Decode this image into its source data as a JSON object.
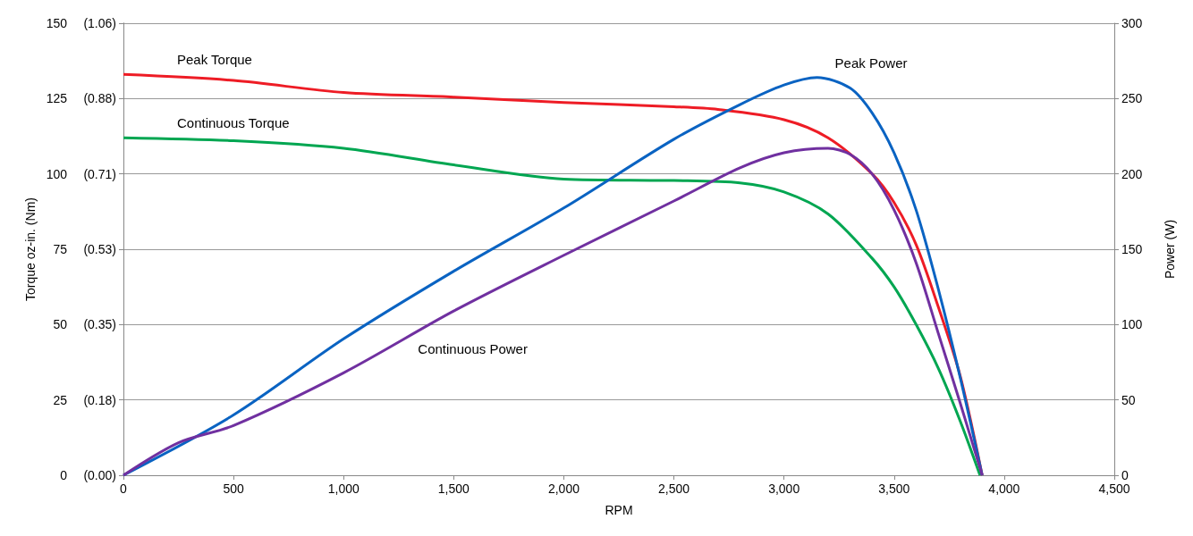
{
  "chart_data": {
    "type": "line",
    "xlabel": "RPM",
    "ylabel": "Torque oz-in. (Nm)",
    "y2label": "Power (W)",
    "xlim": [
      0,
      4500
    ],
    "xticks": [
      0,
      {
        "value": 500,
        "label": "500"
      },
      {
        "value": 1000,
        "label": "1,000"
      },
      {
        "value": 1500,
        "label": "1,500"
      },
      {
        "value": 2000,
        "label": "2,000"
      },
      {
        "value": 2500,
        "label": "2,500"
      },
      {
        "value": 3000,
        "label": "3,000"
      },
      {
        "value": 3500,
        "label": "3,500"
      },
      {
        "value": 4000,
        "label": "4,000"
      },
      {
        "value": 4500,
        "label": "4,500"
      }
    ],
    "ylim": [
      0,
      150
    ],
    "yticks": [
      0,
      25,
      50,
      75,
      100,
      125,
      150
    ],
    "y3lim": [
      0,
      1.0592
    ],
    "y3ticks": [
      {
        "value": 0,
        "label": "(0.00)"
      },
      {
        "value": 0.1765,
        "label": "(0.18)"
      },
      {
        "value": 0.3531,
        "label": "(0.35)"
      },
      {
        "value": 0.5296,
        "label": "(0.53)"
      },
      {
        "value": 0.7062,
        "label": "(0.71)"
      },
      {
        "value": 0.8827,
        "label": "(0.88)"
      },
      {
        "value": 1.0592,
        "label": "(1.06)"
      }
    ],
    "y2lim": [
      0,
      300
    ],
    "y2ticks": [
      0,
      50,
      100,
      150,
      200,
      250,
      300
    ],
    "grid": "y",
    "legend": false,
    "marker": "none",
    "line_style": "solid",
    "series": [
      {
        "name": "Peak Torque",
        "color": "#ee1c25",
        "x": [
          0,
          500,
          1000,
          1500,
          2000,
          2500,
          2700,
          3000,
          3200,
          3400,
          3500,
          3600,
          3700,
          3800,
          3900
        ],
        "values": [
          133,
          131,
          127,
          125.5,
          123.7,
          122.3,
          121.4,
          118,
          112,
          100,
          90.5,
          76.5,
          56,
          33,
          0
        ]
      },
      {
        "name": "Continuous Torque",
        "color": "#00a651",
        "x": [
          0,
          500,
          1000,
          1500,
          2000,
          2500,
          2800,
          3000,
          3200,
          3400,
          3500,
          3600,
          3700,
          3800,
          3890
        ],
        "values": [
          112,
          111,
          108.5,
          103,
          98.3,
          97.8,
          97,
          94,
          86.7,
          72,
          62.5,
          50,
          35.6,
          18,
          0
        ]
      },
      {
        "name": "Peak Power",
        "color": "#0a63c2",
        "axis": "y2",
        "x": [
          0,
          500,
          1000,
          1500,
          2000,
          2500,
          2800,
          3000,
          3150,
          3300,
          3400,
          3500,
          3600,
          3700,
          3800,
          3900
        ],
        "values": [
          0,
          40,
          90.5,
          135.4,
          177.4,
          223,
          246,
          259,
          264,
          257,
          240.5,
          214,
          176,
          124,
          65,
          0
        ]
      },
      {
        "name": "Continuous Power",
        "color": "#7030a0",
        "axis": "y2",
        "x": [
          0,
          250,
          500,
          1000,
          1500,
          2000,
          2500,
          2800,
          3000,
          3200,
          3300,
          3400,
          3500,
          3600,
          3700,
          3800,
          3900
        ],
        "values": [
          0,
          21.6,
          33,
          68,
          109,
          146,
          182,
          204,
          214,
          217,
          213,
          200,
          176,
          141,
          94.5,
          48,
          0
        ]
      }
    ]
  }
}
